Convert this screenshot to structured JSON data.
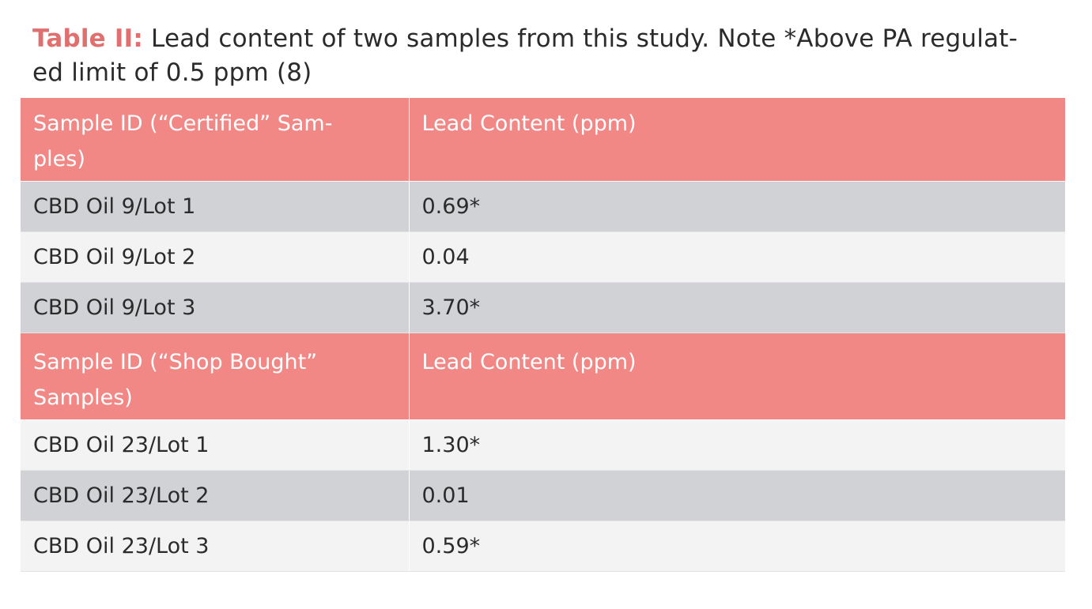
{
  "caption": {
    "label": "Table II:",
    "text": "Lead content of two samples from this study. Note *Above PA regulat-ed limit of 0.5 ppm (8)"
  },
  "sections": [
    {
      "header": [
        "Sample ID (“Certified” Sam-ples)",
        "Lead Content (ppm)"
      ],
      "rows": [
        [
          "CBD Oil 9/Lot 1",
          "0.69*"
        ],
        [
          "CBD Oil 9/Lot 2",
          "0.04"
        ],
        [
          "CBD Oil 9/Lot 3",
          "3.70*"
        ]
      ]
    },
    {
      "header": [
        "Sample ID (“Shop Bought” Samples)",
        "Lead Content (ppm)"
      ],
      "rows": [
        [
          "CBD Oil 23/Lot 1",
          "1.30*"
        ],
        [
          "CBD Oil 23/Lot 2",
          "0.01"
        ],
        [
          "CBD Oil 23/Lot 3",
          "0.59*"
        ]
      ]
    }
  ],
  "colors": {
    "label": "#e06f6f",
    "header_bg": "#f28886",
    "row_dark": "#d0d2d5",
    "row_light": "#f3f3f3"
  }
}
